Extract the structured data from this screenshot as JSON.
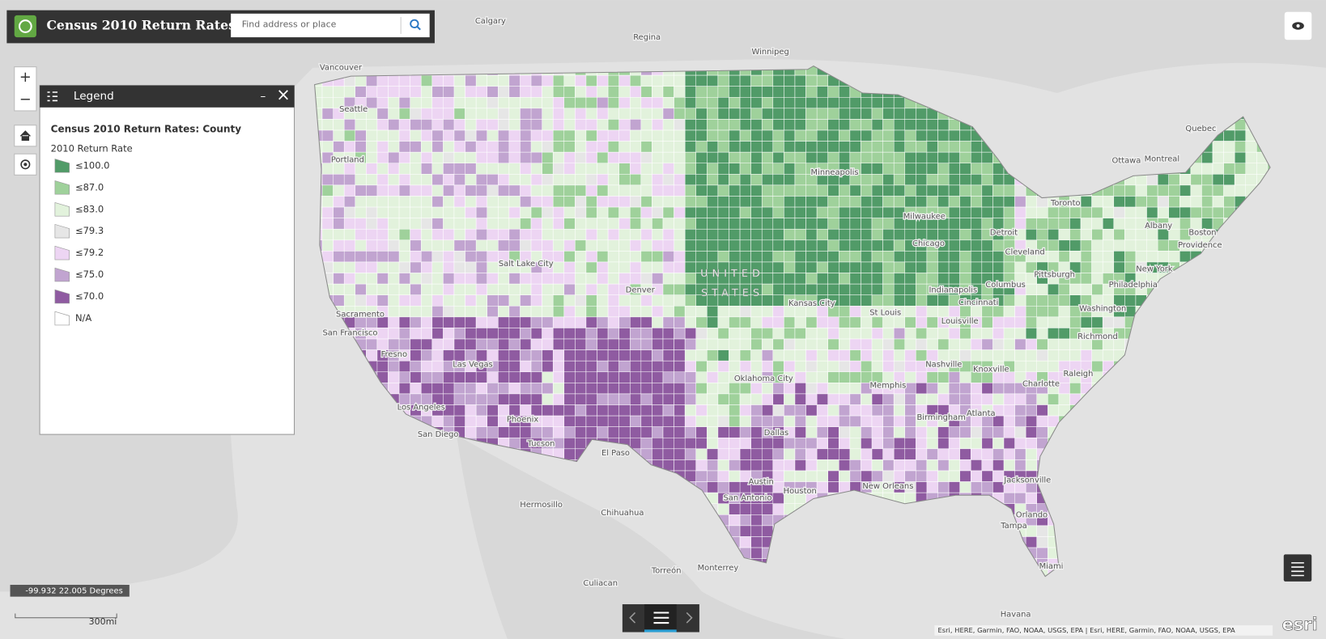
{
  "header": {
    "title": "Census 2010 Return Rates",
    "search_placeholder": "Find address or place"
  },
  "controls": {
    "zoom_in": "+",
    "zoom_out": "−",
    "minimize": "–",
    "close": "×"
  },
  "legend": {
    "panel_title": "Legend",
    "layer_title": "Census 2010 Return Rates: County",
    "field": "2010 Return Rate",
    "items": [
      {
        "label": "≤100.0",
        "color": "#519b68"
      },
      {
        "label": "≤87.0",
        "color": "#9fd19b"
      },
      {
        "label": "≤83.0",
        "color": "#e2f2dc"
      },
      {
        "label": "≤79.3",
        "color": "#e6e6e6"
      },
      {
        "label": "≤79.2",
        "color": "#edd5f3"
      },
      {
        "label": "≤75.0",
        "color": "#c1a4d0"
      },
      {
        "label": "≤70.0",
        "color": "#8f5ba1"
      },
      {
        "label": "N/A",
        "color": "#ffffff"
      }
    ]
  },
  "map": {
    "country_label": [
      "UNITED",
      "STATES"
    ],
    "place_labels": [
      "Calgary",
      "Regina",
      "Winnipeg",
      "Vancouver",
      "Seattle",
      "Portland",
      "Sacramento",
      "San Francisco",
      "Fresno",
      "Las Vegas",
      "Los Angeles",
      "San Diego",
      "Phoenix",
      "Tucson",
      "Salt Lake City",
      "Denver",
      "El Paso",
      "Hermosillo",
      "Chihuahua",
      "Torreón",
      "Monterrey",
      "Culiacan",
      "Dallas",
      "Austin",
      "Houston",
      "San Antonio",
      "Oklahoma City",
      "Kansas City",
      "St Louis",
      "Memphis",
      "Nashville",
      "Knoxville",
      "Atlanta",
      "Birmingham",
      "New Orleans",
      "Jacksonville",
      "Tampa",
      "Orlando",
      "Miami",
      "Charlotte",
      "Raleigh",
      "Richmond",
      "Washington",
      "Philadelphia",
      "New York",
      "Boston",
      "Providence",
      "Albany",
      "Pittsburgh",
      "Columbus",
      "Cleveland",
      "Detroit",
      "Chicago",
      "Milwaukee",
      "Minneapolis",
      "Indianapolis",
      "Cincinnati",
      "Louisville",
      "Toronto",
      "Ottawa",
      "Montreal",
      "Quebec",
      "Havana"
    ]
  },
  "coordinates": "-99.932 22.005 Degrees",
  "scale": "300mi",
  "attribution": "Esri, HERE, Garmin, FAO, NOAA, USGS, EPA | Esri, HERE, Garmin, FAO, NOAA, USGS, EPA",
  "powered_by": "esri"
}
